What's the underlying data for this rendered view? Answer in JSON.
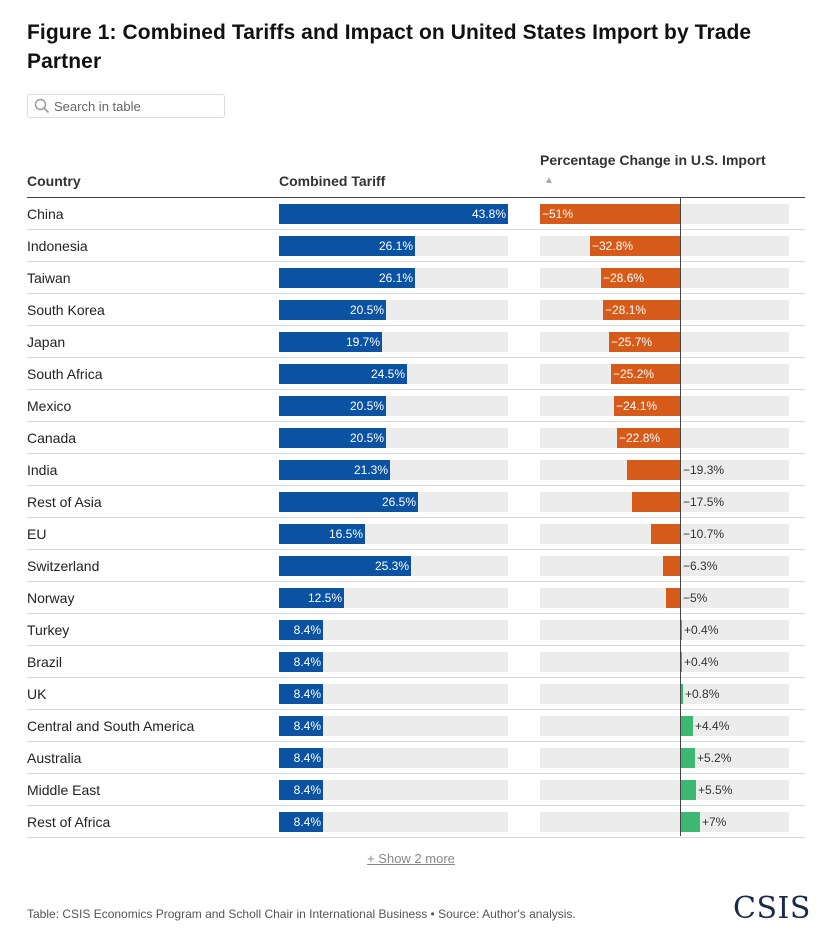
{
  "page": {
    "title": "Figure 1: Combined Tariffs and Impact on United States Import by Trade Partner",
    "search_placeholder": "Search in table",
    "show_more": "+ Show 2 more",
    "footer": "Table: CSIS Economics Program and Scholl Chair in International Business • Source: Author's analysis.",
    "logo": "CSIS"
  },
  "colors": {
    "tariff_bar": "#0b52a3",
    "negative_change": "#d65b1a",
    "positive_change": "#3db872",
    "track": "#ececec"
  },
  "chart_data": {
    "type": "table",
    "title": "Figure 1: Combined Tariffs and Impact on United States Import by Trade Partner",
    "columns": [
      "Country",
      "Combined Tariff",
      "Percentage Change in U.S. Import"
    ],
    "sort": {
      "column": "Percentage Change in U.S. Import",
      "direction": "ascending"
    },
    "tariff_range": [
      0,
      43.8
    ],
    "change_range": [
      -51,
      7
    ],
    "rows": [
      {
        "country": "China",
        "tariff": 43.8,
        "tariff_label": "43.8%",
        "change": -51,
        "change_label": "−51%"
      },
      {
        "country": "Indonesia",
        "tariff": 26.1,
        "tariff_label": "26.1%",
        "change": -32.8,
        "change_label": "−32.8%"
      },
      {
        "country": "Taiwan",
        "tariff": 26.1,
        "tariff_label": "26.1%",
        "change": -28.6,
        "change_label": "−28.6%"
      },
      {
        "country": "South Korea",
        "tariff": 20.5,
        "tariff_label": "20.5%",
        "change": -28.1,
        "change_label": "−28.1%"
      },
      {
        "country": "Japan",
        "tariff": 19.7,
        "tariff_label": "19.7%",
        "change": -25.7,
        "change_label": "−25.7%"
      },
      {
        "country": "South Africa",
        "tariff": 24.5,
        "tariff_label": "24.5%",
        "change": -25.2,
        "change_label": "−25.2%"
      },
      {
        "country": "Mexico",
        "tariff": 20.5,
        "tariff_label": "20.5%",
        "change": -24.1,
        "change_label": "−24.1%"
      },
      {
        "country": "Canada",
        "tariff": 20.5,
        "tariff_label": "20.5%",
        "change": -22.8,
        "change_label": "−22.8%"
      },
      {
        "country": "India",
        "tariff": 21.3,
        "tariff_label": "21.3%",
        "change": -19.3,
        "change_label": "−19.3%"
      },
      {
        "country": "Rest of Asia",
        "tariff": 26.5,
        "tariff_label": "26.5%",
        "change": -17.5,
        "change_label": "−17.5%"
      },
      {
        "country": "EU",
        "tariff": 16.5,
        "tariff_label": "16.5%",
        "change": -10.7,
        "change_label": "−10.7%"
      },
      {
        "country": "Switzerland",
        "tariff": 25.3,
        "tariff_label": "25.3%",
        "change": -6.3,
        "change_label": "−6.3%"
      },
      {
        "country": "Norway",
        "tariff": 12.5,
        "tariff_label": "12.5%",
        "change": -5,
        "change_label": "−5%"
      },
      {
        "country": "Turkey",
        "tariff": 8.4,
        "tariff_label": "8.4%",
        "change": 0.4,
        "change_label": "+0.4%"
      },
      {
        "country": "Brazil",
        "tariff": 8.4,
        "tariff_label": "8.4%",
        "change": 0.4,
        "change_label": "+0.4%"
      },
      {
        "country": "UK",
        "tariff": 8.4,
        "tariff_label": "8.4%",
        "change": 0.8,
        "change_label": "+0.8%"
      },
      {
        "country": "Central and South America",
        "tariff": 8.4,
        "tariff_label": "8.4%",
        "change": 4.4,
        "change_label": "+4.4%"
      },
      {
        "country": "Australia",
        "tariff": 8.4,
        "tariff_label": "8.4%",
        "change": 5.2,
        "change_label": "+5.2%"
      },
      {
        "country": "Middle East",
        "tariff": 8.4,
        "tariff_label": "8.4%",
        "change": 5.5,
        "change_label": "+5.5%"
      },
      {
        "country": "Rest of Africa",
        "tariff": 8.4,
        "tariff_label": "8.4%",
        "change": 7,
        "change_label": "+7%"
      }
    ]
  }
}
